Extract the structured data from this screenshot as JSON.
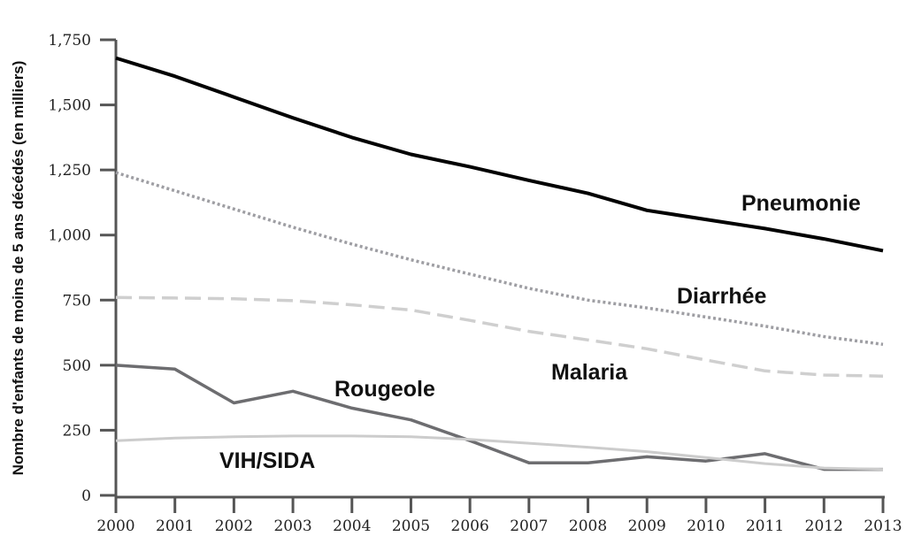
{
  "chart_data": {
    "type": "line",
    "title": "",
    "xlabel": "",
    "ylabel": "Nombre d'enfants de moins de 5 ans décédés (en milliers)",
    "x": [
      2000,
      2001,
      2002,
      2003,
      2004,
      2005,
      2006,
      2007,
      2008,
      2009,
      2010,
      2011,
      2012,
      2013
    ],
    "x_tick_labels": [
      "2000",
      "2001",
      "2002",
      "2003",
      "2004",
      "2005",
      "2006",
      "2007",
      "2008",
      "2009",
      "2010",
      "2011",
      "2012",
      "2013"
    ],
    "ylim": [
      0,
      1750
    ],
    "y_ticks": [
      0,
      250,
      500,
      750,
      1000,
      1250,
      1500,
      1750
    ],
    "y_tick_labels": [
      "0",
      "250",
      "500",
      "750",
      "1,000",
      "1,250",
      "1,500",
      "1,750"
    ],
    "grid": false,
    "legend": "none (direct labels)",
    "series": [
      {
        "name": "Pneumonie",
        "style": "solid",
        "color": "#000000",
        "values": [
          1680,
          1610,
          1530,
          1450,
          1375,
          1310,
          1262,
          1210,
          1160,
          1095,
          1060,
          1025,
          985,
          940
        ]
      },
      {
        "name": "Diarrhée",
        "style": "dotted",
        "color": "#9e9ea3",
        "values": [
          1240,
          1170,
          1100,
          1030,
          965,
          905,
          850,
          795,
          750,
          720,
          685,
          650,
          610,
          580
        ]
      },
      {
        "name": "Malaria",
        "style": "dashed",
        "color": "#cfcfcf",
        "values": [
          760,
          758,
          755,
          748,
          732,
          712,
          672,
          630,
          597,
          563,
          520,
          478,
          462,
          458
        ]
      },
      {
        "name": "Rougeole",
        "style": "solid",
        "color": "#6d6d70",
        "values": [
          500,
          485,
          355,
          400,
          335,
          290,
          210,
          125,
          125,
          148,
          132,
          160,
          100,
          100
        ]
      },
      {
        "name": "VIH/SIDA",
        "style": "solid",
        "color": "#cccccc",
        "values": [
          210,
          220,
          225,
          228,
          228,
          225,
          215,
          200,
          185,
          168,
          145,
          122,
          105,
          100
        ]
      }
    ]
  }
}
